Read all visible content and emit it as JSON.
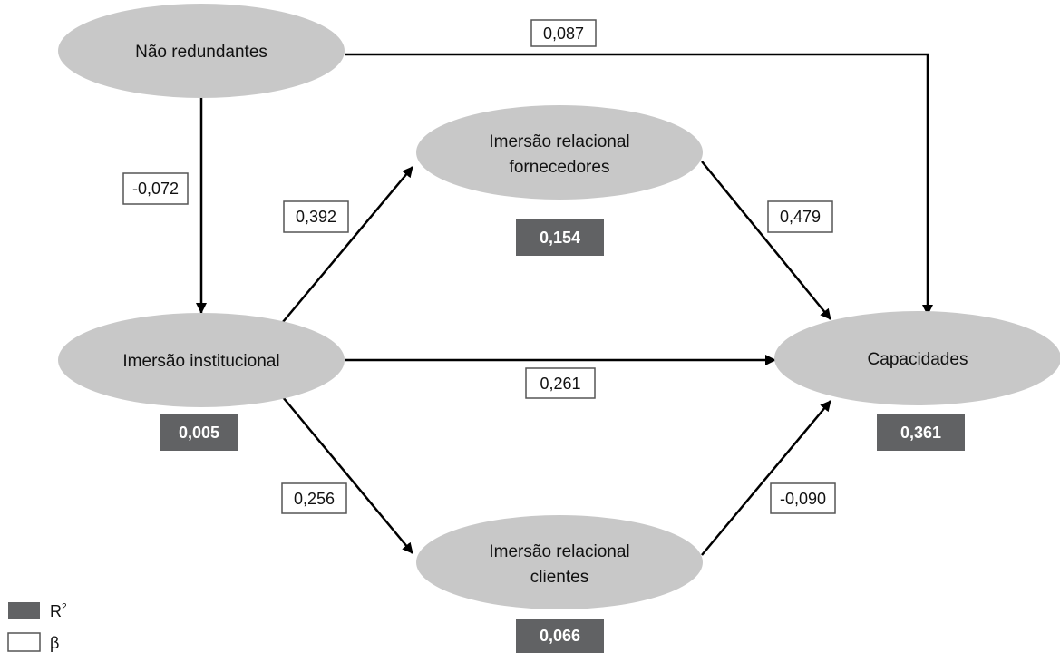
{
  "nodes": {
    "nao_redundantes": [
      "Não redundantes"
    ],
    "imersao_fornecedores": [
      "Imersão relacional",
      "fornecedores"
    ],
    "imersao_institucional": [
      "Imersão institucional"
    ],
    "capacidades": [
      "Capacidades"
    ],
    "imersao_clientes": [
      "Imersão relacional",
      "clientes"
    ]
  },
  "betas": {
    "nr_cap": "0,087",
    "nr_inst": "-0,072",
    "inst_forn": "0,392",
    "forn_cap": "0,479",
    "inst_cap": "0,261",
    "inst_cli": "0,256",
    "cli_cap": "-0,090"
  },
  "r2": {
    "imersao_fornecedores": "0,154",
    "imersao_institucional": "0,005",
    "capacidades": "0,361",
    "imersao_clientes": "0,066"
  },
  "legend": {
    "r2_label": "R",
    "r2_sup": "2",
    "beta_label": "β"
  },
  "colors": {
    "node_fill": "#c8c8c8",
    "r2_fill": "#616264",
    "edge": "#000000"
  }
}
